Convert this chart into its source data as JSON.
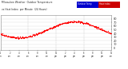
{
  "title_line1": "Milwaukee Weather  Outdoor Temperature",
  "title_line2": "vs Heat Index  per Minute  (24 Hours)",
  "legend_labels": [
    "Outdoor Temp",
    "Heat Index"
  ],
  "legend_colors": [
    "#0000cc",
    "#cc0000"
  ],
  "bg_color": "#ffffff",
  "plot_bg": "#ffffff",
  "dot_color": "#ff0000",
  "dot_size": 0.8,
  "ylim": [
    -5,
    90
  ],
  "yticks": [
    0,
    10,
    20,
    30,
    40,
    50,
    60,
    70,
    80
  ],
  "ytick_labels": [
    "0",
    "10",
    "20",
    "30",
    "40",
    "50",
    "60",
    "70",
    "80"
  ],
  "grid_color": "#dddddd",
  "vline_positions": [
    360,
    720,
    1080
  ],
  "num_minutes": 1440,
  "x_tick_positions": [
    0,
    120,
    240,
    360,
    480,
    600,
    720,
    840,
    960,
    1080,
    1200,
    1320,
    1440
  ],
  "x_tick_labels": [
    "12\nam",
    "2\nam",
    "4\nam",
    "6\nam",
    "8\nam",
    "10\nam",
    "12\npm",
    "2\npm",
    "4\npm",
    "6\npm",
    "8\npm",
    "10\npm",
    "12\nam"
  ],
  "temp_min": 28,
  "temp_max": 72,
  "phase_shift": 240,
  "noise_seed": 42
}
